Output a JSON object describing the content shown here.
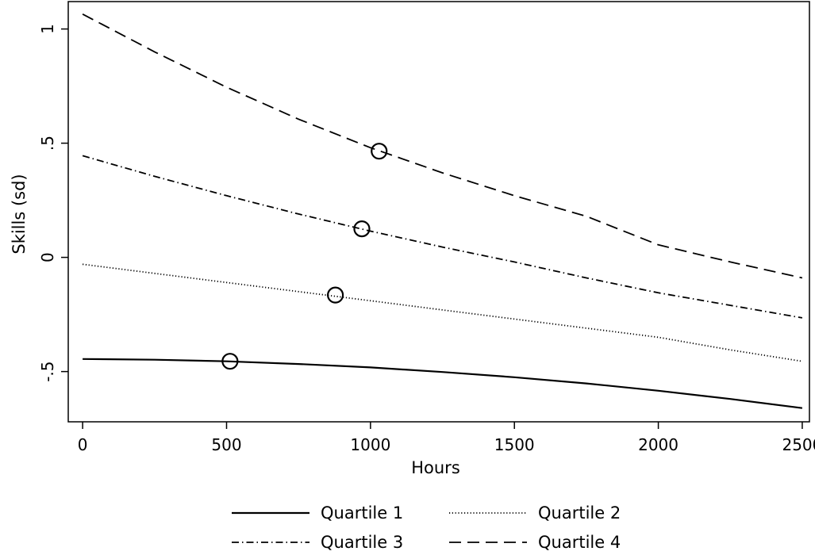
{
  "chart_data": {
    "type": "line",
    "title": "",
    "xlabel": "Hours",
    "ylabel": "Skills (sd)",
    "xlim": [
      -50,
      2525
    ],
    "ylim": [
      -0.72,
      1.12
    ],
    "xticks": [
      {
        "value": 0,
        "label": "0"
      },
      {
        "value": 500,
        "label": "500"
      },
      {
        "value": 1000,
        "label": "1000"
      },
      {
        "value": 1500,
        "label": "1500"
      },
      {
        "value": 2000,
        "label": "2000"
      },
      {
        "value": 2500,
        "label": "2500"
      }
    ],
    "yticks": [
      {
        "value": -0.5,
        "label": "-.5"
      },
      {
        "value": 0,
        "label": "0"
      },
      {
        "value": 0.5,
        "label": ".5"
      },
      {
        "value": 1,
        "label": "1"
      }
    ],
    "grid": false,
    "legend_position": "bottom",
    "series": [
      {
        "name": "Quartile 1",
        "style": "solid",
        "color": "#000000",
        "x": [
          0,
          250,
          500,
          750,
          1000,
          1250,
          1500,
          1750,
          2000,
          2250,
          2500
        ],
        "y": [
          -0.445,
          -0.448,
          -0.455,
          -0.467,
          -0.482,
          -0.502,
          -0.525,
          -0.552,
          -0.584,
          -0.62,
          -0.66
        ],
        "marker": {
          "x": 512,
          "y": -0.455
        }
      },
      {
        "name": "Quartile 2",
        "style": "dotted",
        "color": "#000000",
        "x": [
          0,
          250,
          500,
          750,
          1000,
          1250,
          1500,
          1750,
          2000,
          2250,
          2500
        ],
        "y": [
          -0.03,
          -0.07,
          -0.11,
          -0.15,
          -0.19,
          -0.23,
          -0.27,
          -0.31,
          -0.35,
          -0.405,
          -0.455
        ],
        "marker": {
          "x": 878,
          "y": -0.165
        }
      },
      {
        "name": "Quartile 3",
        "style": "dashdot",
        "color": "#000000",
        "x": [
          0,
          250,
          500,
          750,
          1000,
          1250,
          1500,
          1750,
          2000,
          2250,
          2500
        ],
        "y": [
          0.445,
          0.355,
          0.27,
          0.19,
          0.115,
          0.045,
          -0.02,
          -0.09,
          -0.155,
          -0.21,
          -0.265
        ],
        "marker": {
          "x": 970,
          "y": 0.125
        }
      },
      {
        "name": "Quartile 4",
        "style": "dashed",
        "color": "#000000",
        "x": [
          0,
          250,
          500,
          750,
          1000,
          1250,
          1500,
          1750,
          2000,
          2250,
          2500
        ],
        "y": [
          1.065,
          0.9,
          0.745,
          0.605,
          0.48,
          0.37,
          0.27,
          0.18,
          0.055,
          -0.02,
          -0.09
        ],
        "marker": {
          "x": 1030,
          "y": 0.465
        }
      }
    ]
  }
}
